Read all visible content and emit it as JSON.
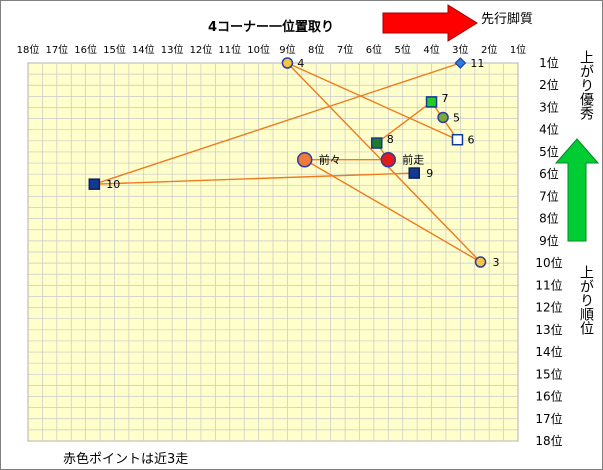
{
  "chart_data": {
    "type": "scatter",
    "title": "4コーナー一位置取り",
    "x_axis": {
      "title": "",
      "range": [
        18,
        1
      ],
      "reversed": true,
      "ticks": [
        "18位",
        "17位",
        "16位",
        "15位",
        "14位",
        "13位",
        "12位",
        "11位",
        "10位",
        "9位",
        "8位",
        "7位",
        "6位",
        "5位",
        "4位",
        "3位",
        "2位",
        "1位"
      ]
    },
    "y_axis": {
      "title": "",
      "range": [
        1,
        18
      ],
      "reversed": true,
      "ticks": [
        "1位",
        "2位",
        "3位",
        "4位",
        "5位",
        "6位",
        "7位",
        "8位",
        "9位",
        "10位",
        "11位",
        "12位",
        "13位",
        "14位",
        "15位",
        "16位",
        "17位",
        "18位"
      ]
    },
    "grid": true,
    "points": [
      {
        "label": "11",
        "x": 3.0,
        "y": 1.0,
        "shape": "diamond",
        "fill": "#2e7be0",
        "stroke": "#1f3fa0"
      },
      {
        "label": "4",
        "x": 9.0,
        "y": 1.0,
        "shape": "circle",
        "fill": "#f6c342",
        "stroke": "#2b3e9f"
      },
      {
        "label": "7",
        "x": 4.0,
        "y": 2.75,
        "shape": "square",
        "fill": "#22cc22",
        "stroke": "#123a93"
      },
      {
        "label": "5",
        "x": 3.6,
        "y": 3.45,
        "shape": "circle",
        "fill": "#7aa83a",
        "stroke": "#2b3e9f"
      },
      {
        "label": "6",
        "x": 3.1,
        "y": 4.45,
        "shape": "square",
        "fill": "#ffffff",
        "stroke": "#123a93"
      },
      {
        "label": "8",
        "x": 5.9,
        "y": 4.6,
        "shape": "square",
        "fill": "#1f7a2a",
        "stroke": "#123a93"
      },
      {
        "label": "前々",
        "x": 8.4,
        "y": 5.35,
        "shape": "circle-large",
        "fill": "#f07a3a",
        "stroke": "#2b3e9f"
      },
      {
        "label": "前走",
        "x": 5.5,
        "y": 5.35,
        "shape": "circle-large",
        "fill": "#e21b1b",
        "stroke": "#2b3e9f"
      },
      {
        "label": "9",
        "x": 4.6,
        "y": 5.95,
        "shape": "square",
        "fill": "#123a93",
        "stroke": "#0a1f5c"
      },
      {
        "label": "10",
        "x": 15.7,
        "y": 6.45,
        "shape": "square",
        "fill": "#123a93",
        "stroke": "#0a1f5c"
      },
      {
        "label": "3",
        "x": 2.3,
        "y": 9.95,
        "shape": "circle",
        "fill": "#f6c342",
        "stroke": "#2b3e9f"
      }
    ],
    "path_order": [
      "3",
      "前々",
      "前走",
      "8",
      "7",
      "6",
      "4",
      "3"
    ],
    "path_segments": [
      [
        "9",
        "10"
      ],
      [
        "10",
        "11"
      ]
    ],
    "line_color": "#f07a1e",
    "annotations": {
      "top_right": "先行脚質",
      "right_top": "上がり優秀",
      "right_bottom": "上がり順位",
      "footer": "赤色ポイントは近3走"
    },
    "colors": {
      "plot_bg": "#ffffcc",
      "grid": "#c8c8c8",
      "arrow_red": "#ff0000",
      "arrow_green": "#00cc33"
    }
  }
}
